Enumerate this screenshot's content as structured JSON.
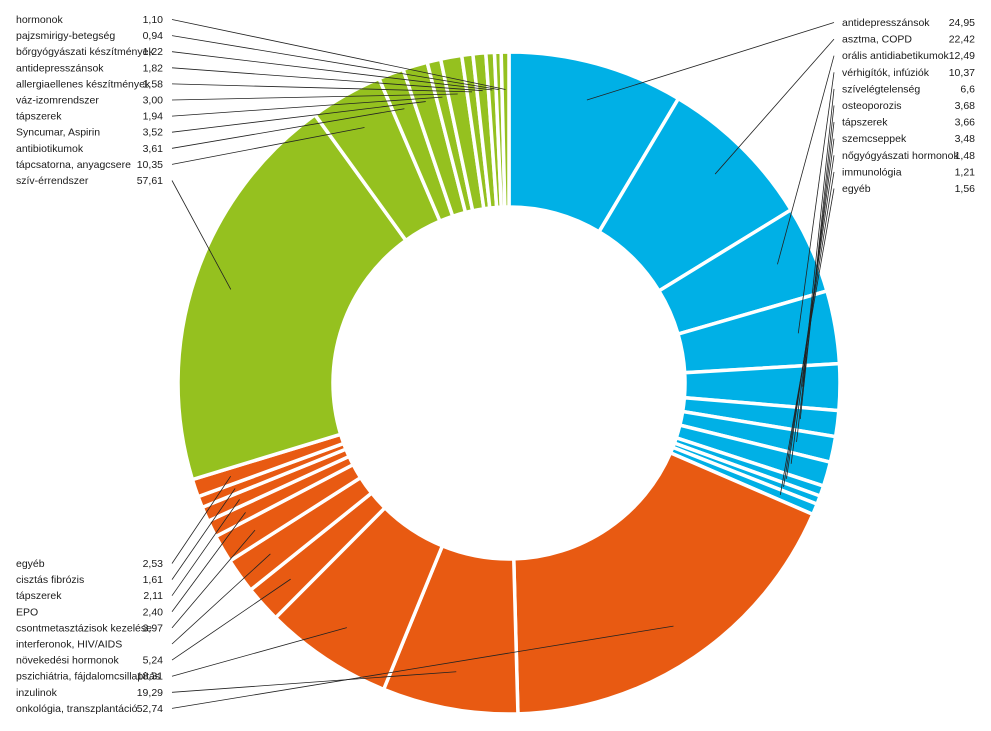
{
  "chart_data": {
    "type": "pie",
    "variant": "donut",
    "colors": {
      "blue": "#00b0e6",
      "orange": "#e85a12",
      "green": "#95c11f"
    },
    "segments": [
      {
        "label": "antidepresszánsok",
        "value": 24.95,
        "value_text": "24,95",
        "group": "blue"
      },
      {
        "label": "asztma, COPD",
        "value": 22.42,
        "value_text": "22,42",
        "group": "blue"
      },
      {
        "label": "orális antidiabetikumok",
        "value": 12.49,
        "value_text": "12,49",
        "group": "blue"
      },
      {
        "label": "vérhigítók, infúziók",
        "value": 10.37,
        "value_text": "10,37",
        "group": "blue"
      },
      {
        "label": "szívelégtelenség",
        "value": 6.6,
        "value_text": "6,6",
        "group": "blue"
      },
      {
        "label": "osteoporozis",
        "value": 3.68,
        "value_text": "3,68",
        "group": "blue"
      },
      {
        "label": "tápszerek",
        "value": 3.66,
        "value_text": "3,66",
        "group": "blue"
      },
      {
        "label": "szemcseppek",
        "value": 3.48,
        "value_text": "3,48",
        "group": "blue"
      },
      {
        "label": "nőgyógyászati hormonok",
        "value": 1.48,
        "value_text": "1,48",
        "group": "blue"
      },
      {
        "label": "immunológia",
        "value": 1.21,
        "value_text": "1,21",
        "group": "blue"
      },
      {
        "label": "egyéb",
        "value": 1.56,
        "value_text": "1,56",
        "group": "blue"
      },
      {
        "label": "onkológia, transzplantáció",
        "value": 52.74,
        "value_text": "52,74",
        "group": "orange"
      },
      {
        "label": "inzulinok",
        "value": 19.29,
        "value_text": "19,29",
        "group": "orange"
      },
      {
        "label": "pszichiátria, fájdalomcsillapítás",
        "value": 18.31,
        "value_text": "18,31",
        "group": "orange"
      },
      {
        "label": "növekedési hormonok",
        "value": 5.24,
        "value_text": "5,24",
        "group": "orange"
      },
      {
        "label": "interferonok, HIV/AIDS",
        "value": 5.0,
        "value_text": "",
        "group": "orange"
      },
      {
        "label": "csontmetasztázisok kezelése",
        "value": 3.97,
        "value_text": "3,97",
        "group": "orange"
      },
      {
        "label": "EPO",
        "value": 2.4,
        "value_text": "2,40",
        "group": "orange"
      },
      {
        "label": "tápszerek",
        "value": 2.11,
        "value_text": "2,11",
        "group": "orange"
      },
      {
        "label": "cisztás fibrózis",
        "value": 1.61,
        "value_text": "1,61",
        "group": "orange"
      },
      {
        "label": "egyéb",
        "value": 2.53,
        "value_text": "2,53",
        "group": "orange"
      },
      {
        "label": "szív-érrendszer",
        "value": 57.61,
        "value_text": "57,61",
        "group": "green"
      },
      {
        "label": "tápcsatorna, anyagcsere",
        "value": 10.35,
        "value_text": "10,35",
        "group": "green"
      },
      {
        "label": "antibiotikumok",
        "value": 3.61,
        "value_text": "3,61",
        "group": "green"
      },
      {
        "label": "Syncumar, Aspirin",
        "value": 3.52,
        "value_text": "3,52",
        "group": "green"
      },
      {
        "label": "tápszerek",
        "value": 1.94,
        "value_text": "1,94",
        "group": "green"
      },
      {
        "label": "váz-izomrendszer",
        "value": 3.0,
        "value_text": "3,00",
        "group": "green"
      },
      {
        "label": "allergiaellenes készítmények",
        "value": 1.58,
        "value_text": "1,58",
        "group": "green"
      },
      {
        "label": "antidepresszánsok",
        "value": 1.82,
        "value_text": "1,82",
        "group": "green"
      },
      {
        "label": "bőrgyógyászati készítmények",
        "value": 1.22,
        "value_text": "1,22",
        "group": "green"
      },
      {
        "label": "pajzsmirigy-betegség",
        "value": 0.94,
        "value_text": "0,94",
        "group": "green"
      },
      {
        "label": "hormonok",
        "value": 1.1,
        "value_text": "1,10",
        "group": "green"
      }
    ],
    "legend_order": {
      "blue": [
        0,
        1,
        2,
        3,
        4,
        5,
        6,
        7,
        8,
        9,
        10
      ],
      "orange": [
        20,
        19,
        18,
        17,
        16,
        15,
        14,
        13,
        12,
        11
      ],
      "green": [
        31,
        30,
        29,
        28,
        27,
        26,
        25,
        24,
        23,
        22,
        21
      ]
    }
  }
}
